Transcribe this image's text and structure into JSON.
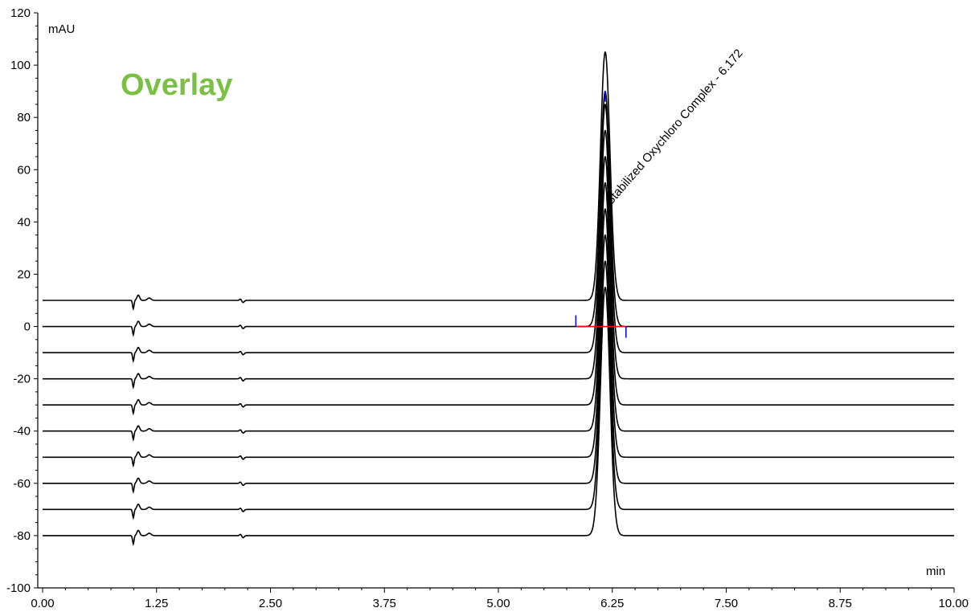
{
  "chart_data": {
    "type": "line",
    "title": "Overlay",
    "xlabel": "min",
    "ylabel": "mAU",
    "xlim": [
      0,
      10
    ],
    "ylim": [
      -100,
      120
    ],
    "x_ticks": [
      "0.00",
      "1.25",
      "2.50",
      "3.75",
      "5.00",
      "6.25",
      "7.50",
      "8.75",
      "10.00"
    ],
    "y_ticks": [
      "-100",
      "-80",
      "-60",
      "-40",
      "-20",
      "0",
      "20",
      "40",
      "60",
      "80",
      "100",
      "120"
    ],
    "peak_label": "Stabilized Oxychloro Complex - 6.172",
    "peak_time": 6.172,
    "integration_baseline": {
      "start": 5.85,
      "end": 6.4
    },
    "series": [
      {
        "offset": 10,
        "peak_height": 95
      },
      {
        "offset": 0,
        "peak_height": 90
      },
      {
        "offset": -10,
        "peak_height": 95
      },
      {
        "offset": -20,
        "peak_height": 95
      },
      {
        "offset": -30,
        "peak_height": 95
      },
      {
        "offset": -40,
        "peak_height": 95
      },
      {
        "offset": -50,
        "peak_height": 95
      },
      {
        "offset": -60,
        "peak_height": 95
      },
      {
        "offset": -70,
        "peak_height": 95
      },
      {
        "offset": -80,
        "peak_height": 95
      }
    ],
    "grid": false,
    "colors": {
      "trace": "#000000",
      "overlay_title": "#7ac143",
      "baseline": "#ff0000",
      "marker": "#0000ff"
    }
  }
}
